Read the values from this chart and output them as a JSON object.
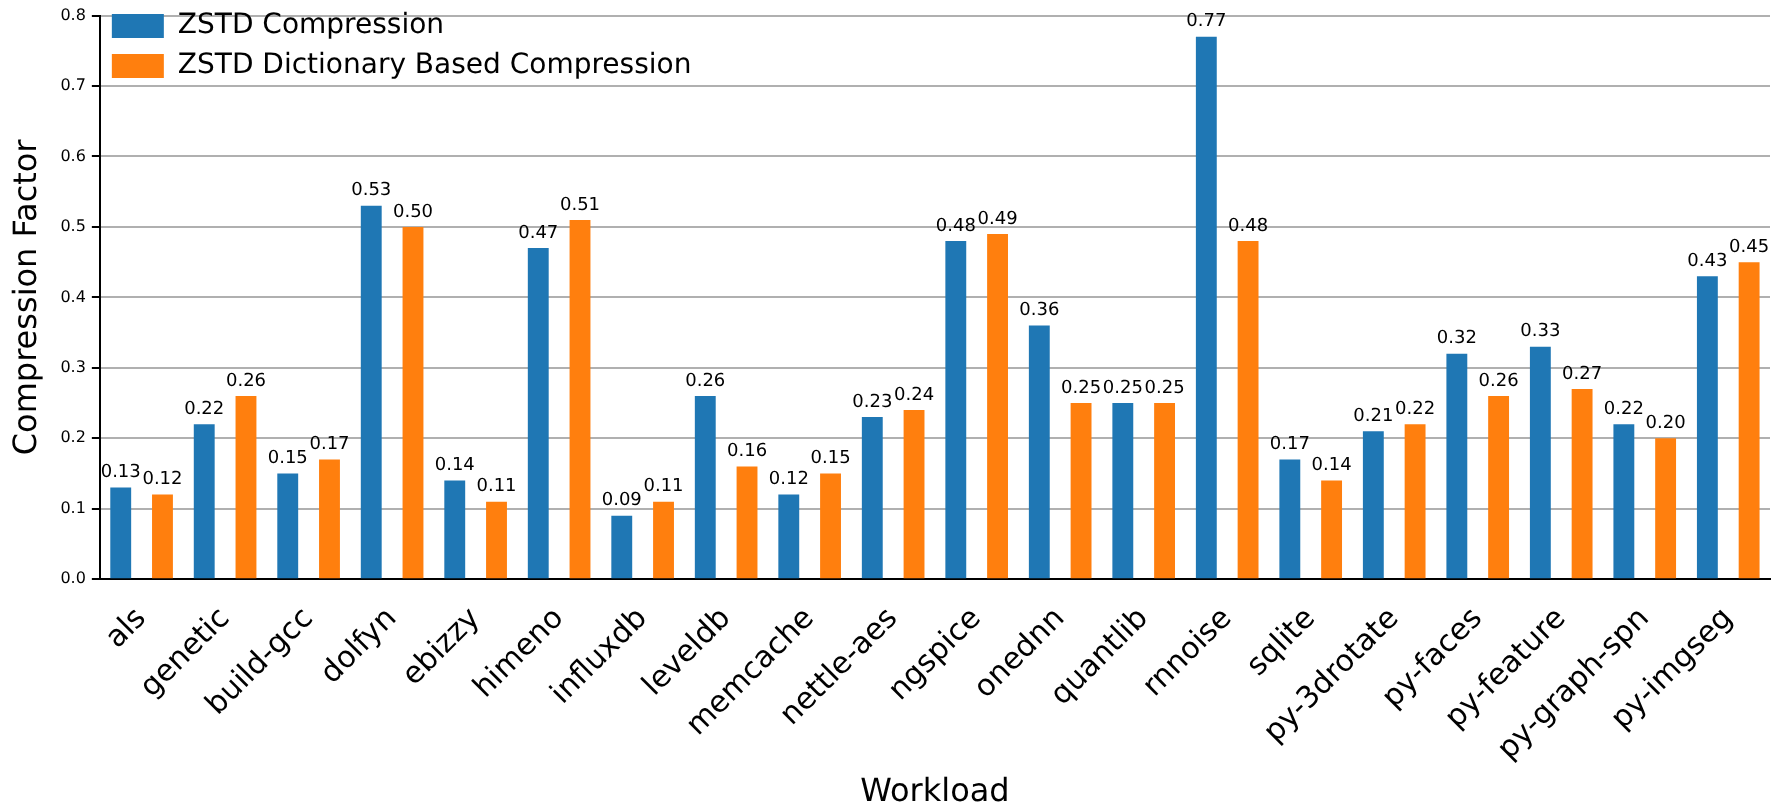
{
  "chart_data": {
    "type": "bar",
    "xlabel": "Workload",
    "ylabel": "Compression Factor",
    "categories": [
      "als",
      "genetic",
      "build-gcc",
      "dolfyn",
      "ebizzy",
      "himeno",
      "influxdb",
      "leveldb",
      "memcache",
      "nettle-aes",
      "ngspice",
      "onednn",
      "quantlib",
      "rnnoise",
      "sqlite",
      "py-3drotate",
      "py-faces",
      "py-feature",
      "py-graph-spn",
      "py-imgseg"
    ],
    "series": [
      {
        "name": "ZSTD Compression",
        "color": "#1f77b4",
        "values": [
          0.13,
          0.22,
          0.15,
          0.53,
          0.14,
          0.47,
          0.09,
          0.26,
          0.12,
          0.23,
          0.48,
          0.36,
          0.25,
          0.77,
          0.17,
          0.21,
          0.32,
          0.33,
          0.22,
          0.43
        ],
        "value_labels": [
          "0.13",
          "0.22",
          "0.15",
          "0.53",
          "0.14",
          "0.47",
          "0.09",
          "0.26",
          "0.12",
          "0.23",
          "0.48",
          "0.36",
          "0.25",
          "0.77",
          "0.17",
          "0.21",
          "0.32",
          "0.33",
          "0.22",
          "0.43"
        ]
      },
      {
        "name": "ZSTD Dictionary Based Compression",
        "color": "#ff7f0e",
        "values": [
          0.12,
          0.26,
          0.17,
          0.5,
          0.11,
          0.51,
          0.11,
          0.16,
          0.15,
          0.24,
          0.49,
          0.25,
          0.25,
          0.48,
          0.14,
          0.22,
          0.26,
          0.27,
          0.2,
          0.45
        ],
        "value_labels": [
          "0.12",
          "0.26",
          "0.17",
          "0.50",
          "0.11",
          "0.51",
          "0.11",
          "0.16",
          "0.15",
          "0.24",
          "0.49",
          "0.25",
          "0.25",
          "0.48",
          "0.14",
          "0.22",
          "0.26",
          "0.27",
          "0.20",
          "0.45"
        ]
      }
    ],
    "ylim": [
      0,
      0.8
    ],
    "yticks": [
      {
        "value": 0,
        "label": "0.0"
      },
      {
        "value": 0.1,
        "label": "0.1"
      },
      {
        "value": 0.2,
        "label": "0.2"
      },
      {
        "value": 0.3,
        "label": "0.3"
      },
      {
        "value": 0.4,
        "label": "0.4"
      },
      {
        "value": 0.5,
        "label": "0.5"
      },
      {
        "value": 0.6,
        "label": "0.6"
      },
      {
        "value": 0.7,
        "label": "0.7"
      },
      {
        "value": 0.8,
        "label": "0.8"
      }
    ],
    "grid": "y",
    "legend": "top left"
  }
}
